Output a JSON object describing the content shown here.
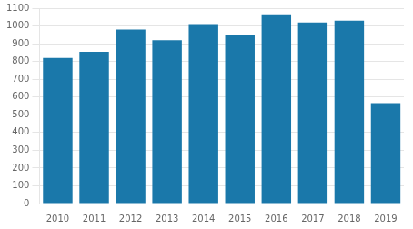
{
  "chart_data": {
    "type": "bar",
    "categories": [
      "2010",
      "2011",
      "2012",
      "2013",
      "2014",
      "2015",
      "2016",
      "2017",
      "2018",
      "2019"
    ],
    "values": [
      820,
      855,
      980,
      920,
      1010,
      950,
      1065,
      1020,
      1030,
      565
    ],
    "color": "#1a78aa",
    "ylim": [
      0,
      1100
    ],
    "yticks": [
      0,
      100,
      200,
      300,
      400,
      500,
      600,
      700,
      800,
      900,
      1000,
      1100
    ],
    "grid": true
  }
}
